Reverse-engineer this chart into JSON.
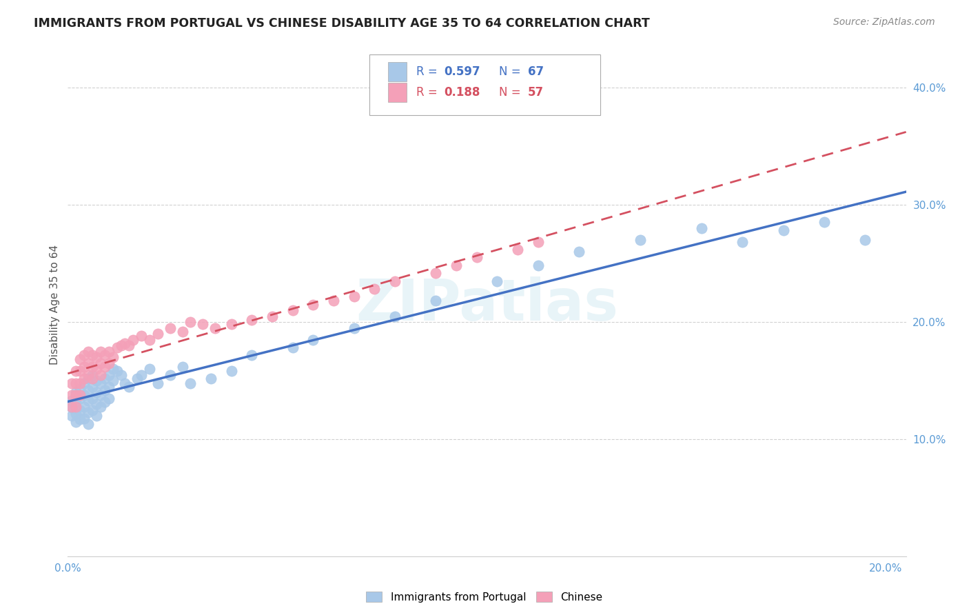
{
  "title": "IMMIGRANTS FROM PORTUGAL VS CHINESE DISABILITY AGE 35 TO 64 CORRELATION CHART",
  "source": "Source: ZipAtlas.com",
  "ylabel": "Disability Age 35 to 64",
  "xlim": [
    0.0,
    0.205
  ],
  "ylim": [
    0.0,
    0.43
  ],
  "xticks": [
    0.0,
    0.02,
    0.04,
    0.06,
    0.08,
    0.1,
    0.12,
    0.14,
    0.16,
    0.18,
    0.2
  ],
  "yticks": [
    0.1,
    0.2,
    0.3,
    0.4
  ],
  "color_portugal": "#a8c8e8",
  "color_chinese": "#f4a0b8",
  "line_color_portugal": "#4472c4",
  "line_color_chinese": "#d45060",
  "watermark": "ZIPatlas",
  "portugal_x": [
    0.001,
    0.001,
    0.001,
    0.002,
    0.002,
    0.002,
    0.002,
    0.003,
    0.003,
    0.003,
    0.003,
    0.004,
    0.004,
    0.004,
    0.004,
    0.005,
    0.005,
    0.005,
    0.005,
    0.005,
    0.006,
    0.006,
    0.006,
    0.006,
    0.007,
    0.007,
    0.007,
    0.007,
    0.008,
    0.008,
    0.008,
    0.009,
    0.009,
    0.009,
    0.01,
    0.01,
    0.01,
    0.011,
    0.011,
    0.012,
    0.013,
    0.014,
    0.015,
    0.017,
    0.018,
    0.02,
    0.022,
    0.025,
    0.028,
    0.03,
    0.035,
    0.04,
    0.045,
    0.055,
    0.06,
    0.07,
    0.08,
    0.09,
    0.105,
    0.115,
    0.125,
    0.14,
    0.155,
    0.165,
    0.175,
    0.185,
    0.195
  ],
  "portugal_y": [
    0.133,
    0.127,
    0.12,
    0.14,
    0.132,
    0.122,
    0.115,
    0.143,
    0.135,
    0.125,
    0.117,
    0.148,
    0.138,
    0.128,
    0.118,
    0.152,
    0.142,
    0.133,
    0.123,
    0.113,
    0.155,
    0.145,
    0.135,
    0.125,
    0.15,
    0.14,
    0.13,
    0.12,
    0.148,
    0.138,
    0.128,
    0.152,
    0.142,
    0.132,
    0.155,
    0.145,
    0.135,
    0.16,
    0.15,
    0.158,
    0.155,
    0.148,
    0.145,
    0.152,
    0.155,
    0.16,
    0.148,
    0.155,
    0.162,
    0.148,
    0.152,
    0.158,
    0.172,
    0.178,
    0.185,
    0.195,
    0.205,
    0.218,
    0.235,
    0.248,
    0.26,
    0.27,
    0.28,
    0.268,
    0.278,
    0.285,
    0.27
  ],
  "chinese_x": [
    0.001,
    0.001,
    0.001,
    0.002,
    0.002,
    0.002,
    0.002,
    0.003,
    0.003,
    0.003,
    0.003,
    0.004,
    0.004,
    0.004,
    0.005,
    0.005,
    0.005,
    0.006,
    0.006,
    0.006,
    0.007,
    0.007,
    0.008,
    0.008,
    0.008,
    0.009,
    0.009,
    0.01,
    0.01,
    0.011,
    0.012,
    0.013,
    0.014,
    0.015,
    0.016,
    0.018,
    0.02,
    0.022,
    0.025,
    0.028,
    0.03,
    0.033,
    0.036,
    0.04,
    0.045,
    0.05,
    0.055,
    0.06,
    0.065,
    0.07,
    0.075,
    0.08,
    0.09,
    0.095,
    0.1,
    0.11,
    0.115
  ],
  "chinese_y": [
    0.148,
    0.138,
    0.128,
    0.158,
    0.148,
    0.138,
    0.128,
    0.168,
    0.158,
    0.148,
    0.138,
    0.172,
    0.162,
    0.152,
    0.175,
    0.165,
    0.155,
    0.172,
    0.162,
    0.152,
    0.17,
    0.16,
    0.175,
    0.165,
    0.155,
    0.172,
    0.162,
    0.175,
    0.165,
    0.17,
    0.178,
    0.18,
    0.182,
    0.18,
    0.185,
    0.188,
    0.185,
    0.19,
    0.195,
    0.192,
    0.2,
    0.198,
    0.195,
    0.198,
    0.202,
    0.205,
    0.21,
    0.215,
    0.218,
    0.222,
    0.228,
    0.235,
    0.242,
    0.248,
    0.255,
    0.262,
    0.268
  ]
}
